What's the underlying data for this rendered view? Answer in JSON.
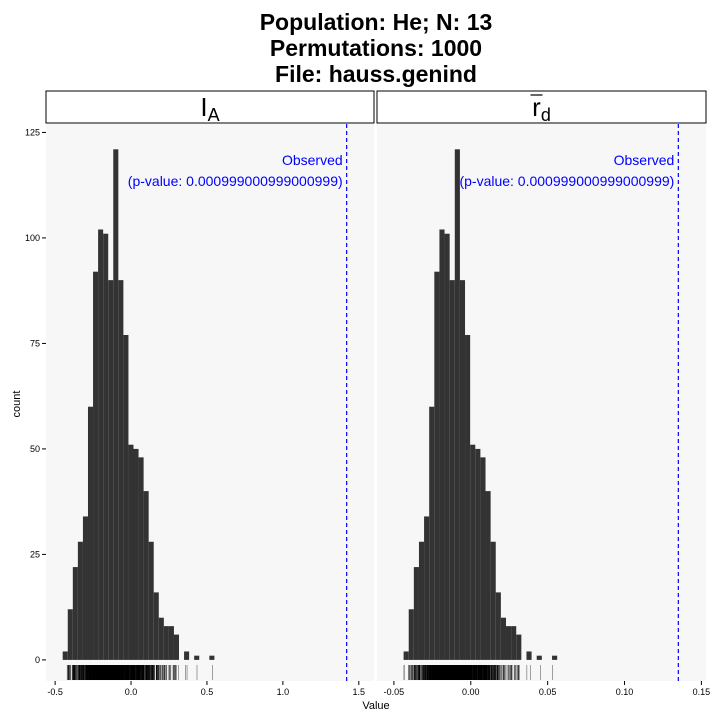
{
  "chart_data": {
    "type": "bar",
    "title": [
      "Population: He; N: 13",
      "Permutations: 1000",
      "File: hauss.genind"
    ],
    "xlabel": "Value",
    "ylabel": "count",
    "ylim": [
      -5,
      127
    ],
    "yticks": [
      0,
      25,
      50,
      75,
      100,
      125
    ],
    "grid": false,
    "colors": {
      "bar": "#333333",
      "panel": "#f7f7f7",
      "observed": "#0000ff",
      "rug": "#000000"
    },
    "panels": [
      {
        "strip": {
          "main": "I",
          "sub": "A",
          "overline": false
        },
        "xlim": [
          -0.56,
          1.6
        ],
        "xticks": [
          -0.5,
          0.0,
          0.5,
          1.0,
          1.5
        ],
        "xtick_labels": [
          "-0.5",
          "0.0",
          "0.5",
          "1.0",
          "1.5"
        ],
        "bins": {
          "x0": -0.45,
          "width": 0.0333,
          "counts": [
            2,
            12,
            22,
            28,
            34,
            60,
            92,
            102,
            101,
            90,
            121,
            90,
            77,
            51,
            50,
            48,
            40,
            28,
            16,
            10,
            8,
            8,
            6,
            0,
            2,
            0,
            1,
            0,
            0,
            1
          ]
        },
        "observed": {
          "value": 1.42,
          "label_line1": "Observed",
          "label_line2": "(p-value: 0.000999000999000999)"
        }
      },
      {
        "strip": {
          "main": "r",
          "sub": "d",
          "overline": true
        },
        "xlim": [
          -0.061,
          0.153
        ],
        "xticks": [
          -0.05,
          0.0,
          0.05,
          0.1,
          0.15
        ],
        "xtick_labels": [
          "-0.05",
          "0.00",
          "0.05",
          "0.10",
          "0.15"
        ],
        "bins": {
          "x0": -0.0437,
          "width": 0.00333,
          "counts": [
            2,
            12,
            22,
            28,
            34,
            60,
            92,
            102,
            101,
            90,
            121,
            90,
            77,
            51,
            50,
            48,
            40,
            28,
            16,
            10,
            8,
            8,
            6,
            0,
            2,
            0,
            1,
            0,
            0,
            1
          ]
        },
        "observed": {
          "value": 0.135,
          "label_line1": "Observed",
          "label_line2": "(p-value: 0.000999000999000999)"
        }
      }
    ]
  }
}
